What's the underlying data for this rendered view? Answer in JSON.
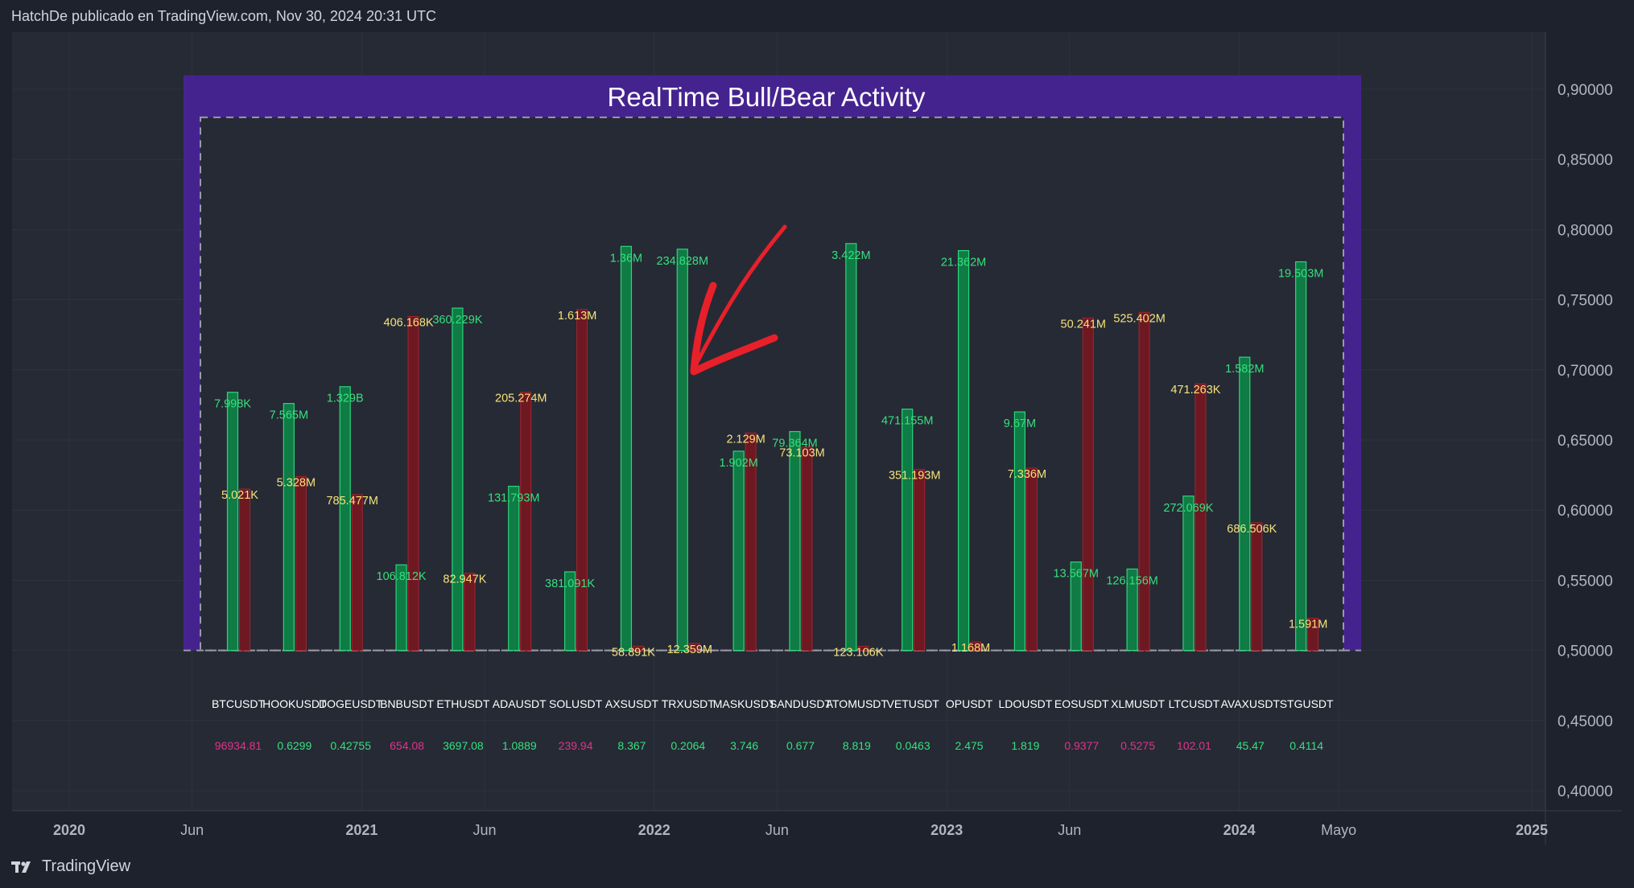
{
  "header": {
    "text": "HatchDe publicado en TradingView.com, Nov 30, 2024 20:31 UTC"
  },
  "footer": {
    "brand": "TradingView",
    "logo_icon": "tradingview-logo-icon"
  },
  "colors": {
    "background": "#1e222d",
    "plot_bg": "#262a35",
    "panel": "#45238f",
    "bull": "#0f7b45",
    "bull_edge": "#2bd67b",
    "bear": "#6e1822",
    "bear_edge": "#a3242f",
    "bull_label": "#35e07d",
    "bear_label": "#f5e27a",
    "price_up": "#35e07d",
    "price_down": "#e0338a",
    "annotation_arrow": "#e8202a"
  },
  "chart_data": {
    "type": "bar",
    "title": "RealTime Bull/Bear Activity",
    "xlabel": "",
    "ylabel": "",
    "ylim": [
      0.39,
      0.935
    ],
    "y_ticks": [
      "0,90000",
      "0,85000",
      "0,80000",
      "0,75000",
      "0,70000",
      "0,65000",
      "0,60000",
      "0,55000",
      "0,50000",
      "0,45000",
      "0,40000"
    ],
    "x_ticks": [
      {
        "label": "2020",
        "bold": true,
        "t": 2020.0
      },
      {
        "label": "Jun",
        "bold": false,
        "t": 2020.42
      },
      {
        "label": "2021",
        "bold": true,
        "t": 2021.0
      },
      {
        "label": "Jun",
        "bold": false,
        "t": 2021.42
      },
      {
        "label": "2022",
        "bold": true,
        "t": 2022.0
      },
      {
        "label": "Jun",
        "bold": false,
        "t": 2022.42
      },
      {
        "label": "2023",
        "bold": true,
        "t": 2023.0
      },
      {
        "label": "Jun",
        "bold": false,
        "t": 2023.42
      },
      {
        "label": "2024",
        "bold": true,
        "t": 2024.0
      },
      {
        "label": "Mayo",
        "bold": false,
        "t": 2024.34
      },
      {
        "label": "2025",
        "bold": true,
        "t": 2025.0
      }
    ],
    "grid": true,
    "panel_range": [
      0.5,
      0.91
    ],
    "series": [
      {
        "name": "Bull",
        "values": [
          0.684,
          0.676,
          0.688,
          0.561,
          0.744,
          0.617,
          0.556,
          0.788,
          0.786,
          0.642,
          0.656,
          0.79,
          0.672,
          0.785,
          0.67,
          0.563,
          0.558,
          0.61,
          0.709,
          0.777
        ]
      },
      {
        "name": "Bear",
        "values": [
          0.615,
          0.624,
          0.611,
          0.738,
          0.555,
          0.684,
          0.743,
          0.503,
          0.505,
          0.655,
          0.645,
          0.503,
          0.629,
          0.506,
          0.63,
          0.737,
          0.741,
          0.69,
          0.591,
          0.523
        ]
      }
    ],
    "categories": [
      "BTCUSDT",
      "HOOKUSDT",
      "DOGEUSDT",
      "BNBUSDT",
      "ETHUSDT",
      "ADAUSDT",
      "SOLUSDT",
      "AXSUSDT",
      "TRXUSDT",
      "MASKUSDT",
      "SANDUSDT",
      "ATOMUSDT",
      "VETUSDT",
      "OPUSDT",
      "LDOUSDT",
      "EOSUSDT",
      "XLMUSDT",
      "LTCUSDT",
      "AVAXUSDT",
      "STGUSDT"
    ],
    "bull_labels": [
      "7.998K",
      "7.565M",
      "1.329B",
      "106.812K",
      "360.229K",
      "131.793M",
      "381.091K",
      "1.36M",
      "234.828M",
      "1.902M",
      "79.364M",
      "3.422M",
      "471.155M",
      "21.362M",
      "9.67M",
      "13.567M",
      "126.156M",
      "272.069K",
      "1.582M",
      "19.503M"
    ],
    "bear_labels": [
      "5.021K",
      "5.328M",
      "785.477M",
      "406.168K",
      "82.947K",
      "205.274M",
      "1.613M",
      "58.891K",
      "12.359M",
      "2.129M",
      "73.103M",
      "123.106K",
      "351.193M",
      "1.168M",
      "7.336M",
      "50.241M",
      "525.402M",
      "471.263K",
      "686.506K",
      "1.591M"
    ],
    "prices": [
      "96934.81",
      "0.6299",
      "0.42755",
      "654.08",
      "3697.08",
      "1.0889",
      "239.94",
      "8.367",
      "0.2064",
      "3.746",
      "0.677",
      "8.819",
      "0.0463",
      "2.475",
      "1.819",
      "0.9377",
      "0.5275",
      "102.01",
      "45.47",
      "0.4114"
    ],
    "price_down": [
      true,
      false,
      false,
      true,
      false,
      false,
      true,
      false,
      false,
      false,
      false,
      false,
      false,
      false,
      false,
      true,
      true,
      true,
      false,
      false
    ]
  }
}
